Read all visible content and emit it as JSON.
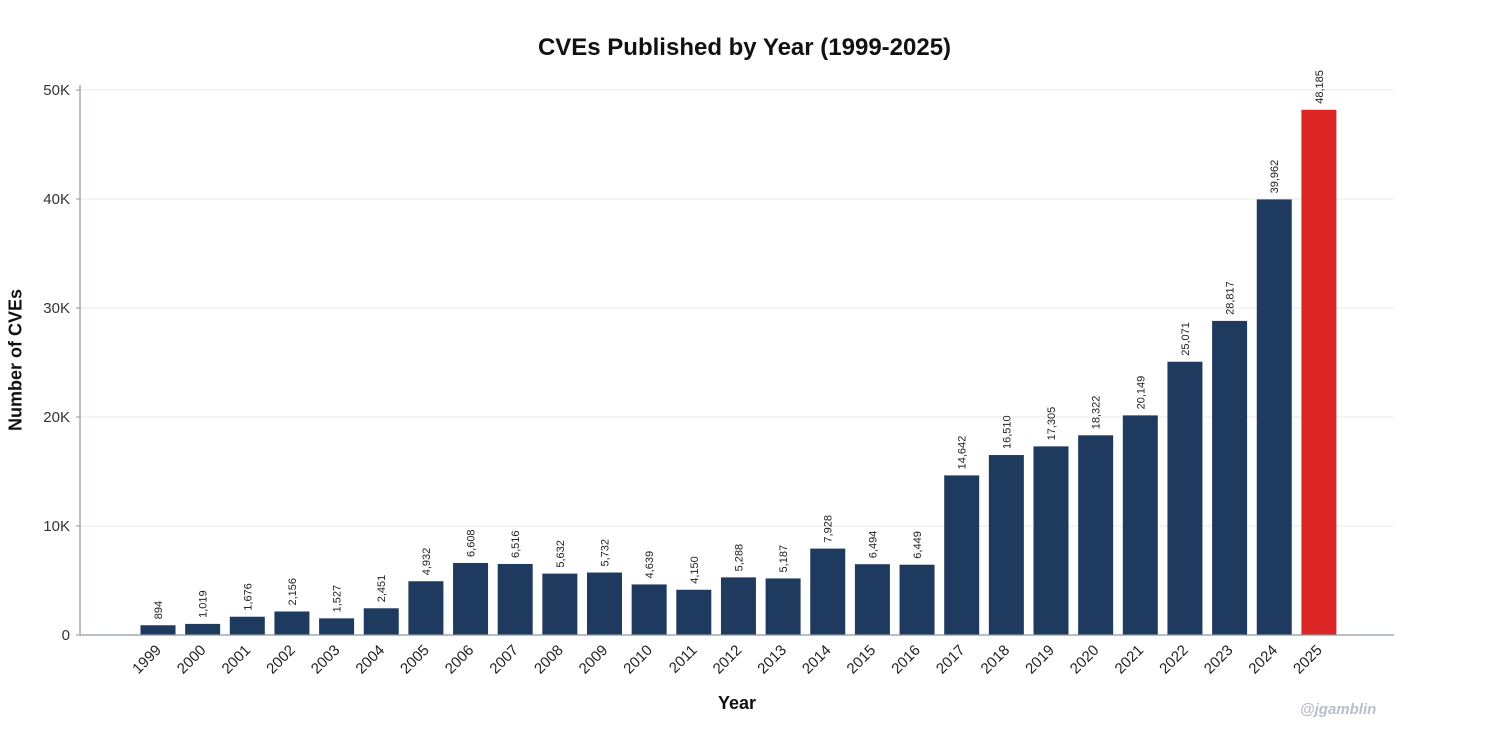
{
  "chart_data": {
    "type": "bar",
    "title": "CVEs Published by Year (1999-2025)",
    "xlabel": "Year",
    "ylabel": "Number of CVEs",
    "categories": [
      "1999",
      "2000",
      "2001",
      "2002",
      "2003",
      "2004",
      "2005",
      "2006",
      "2007",
      "2008",
      "2009",
      "2010",
      "2011",
      "2012",
      "2013",
      "2014",
      "2015",
      "2016",
      "2017",
      "2018",
      "2019",
      "2020",
      "2021",
      "2022",
      "2023",
      "2024",
      "2025"
    ],
    "values": [
      894,
      1019,
      1676,
      2156,
      1527,
      2451,
      4932,
      6608,
      6516,
      5632,
      5732,
      4639,
      4150,
      5288,
      5187,
      7928,
      6494,
      6449,
      14642,
      16510,
      17305,
      18322,
      20149,
      25071,
      28817,
      39962,
      48185
    ],
    "value_labels": [
      "894",
      "1,019",
      "1,676",
      "2,156",
      "1,527",
      "2,451",
      "4,932",
      "6,608",
      "6,516",
      "5,632",
      "5,732",
      "4,639",
      "4,150",
      "5,288",
      "5,187",
      "7,928",
      "6,494",
      "6,449",
      "14,642",
      "16,510",
      "17,305",
      "18,322",
      "20,149",
      "25,071",
      "28,817",
      "39,962",
      "48,185"
    ],
    "yticks": [
      0,
      10000,
      20000,
      30000,
      40000,
      50000
    ],
    "ytick_labels": [
      "0",
      "10K",
      "20K",
      "30K",
      "40K",
      "50K"
    ],
    "ylim": [
      0,
      50000
    ],
    "grid": true,
    "bar_color": "#1f3a5f",
    "highlight_color": "#dc2626",
    "highlight_category": "2025"
  },
  "watermark": "@jgamblin"
}
